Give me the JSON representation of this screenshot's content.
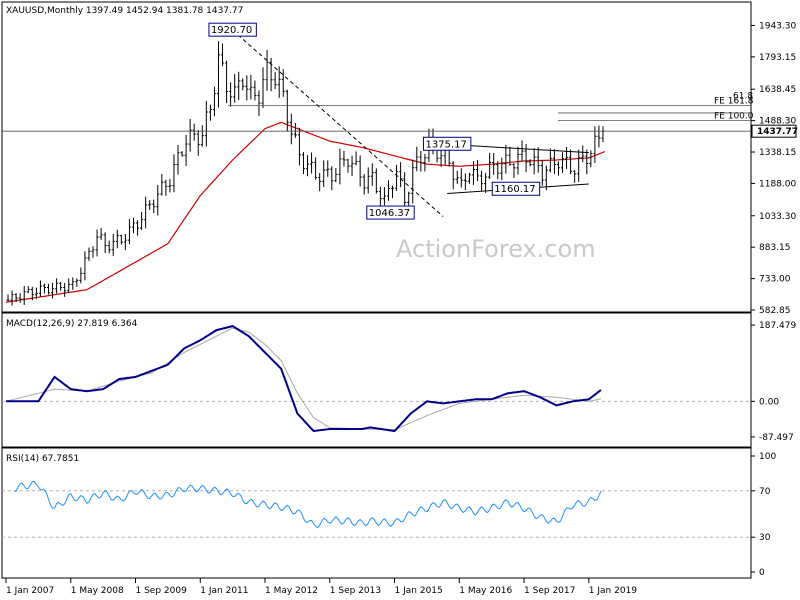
{
  "chart_data": {
    "type": "candlestick",
    "symbol_header": "XAUUSD,Monthly  1397.49 1452.94 1381.78 1437.77",
    "watermark": "ActionForex.com",
    "x_tick_labels": [
      "1 Jan 2007",
      "1 May 2008",
      "1 Sep 2009",
      "1 Jan 2011",
      "1 May 2012",
      "1 Sep 2013",
      "1 Jan 2015",
      "1 May 2016",
      "1 Sep 2017",
      "1 Jan 2019"
    ],
    "x_tick_months": [
      0,
      16,
      32,
      48,
      64,
      80,
      96,
      112,
      128,
      144
    ],
    "total_months": 148,
    "price_panel": {
      "y_range": [
        582.85,
        1998
      ],
      "y_tick_labels": [
        "1943.30",
        "1793.15",
        "1638.45",
        "1488.30",
        "1338.15",
        "1188.00",
        "1033.30",
        "883.15",
        "733.00",
        "582.85"
      ],
      "last_price_label": "1437.77",
      "last_price": 1437.77,
      "ohlc_anchor_months": [
        0,
        4,
        8,
        12,
        16,
        20,
        22,
        24,
        28,
        32,
        36,
        40,
        44,
        48,
        50,
        52,
        54,
        56,
        58,
        60,
        62,
        64,
        66,
        68,
        70,
        72,
        76,
        80,
        84,
        88,
        90,
        93,
        96,
        98,
        100,
        104,
        108,
        112,
        114,
        116,
        120,
        124,
        128,
        132,
        136,
        140,
        144,
        147
      ],
      "ohlc_anchor_closes": [
        630,
        660,
        680,
        690,
        700,
        850,
        940,
        890,
        920,
        1000,
        1110,
        1210,
        1400,
        1420,
        1550,
        1780,
        1660,
        1610,
        1700,
        1600,
        1620,
        1720,
        1700,
        1600,
        1440,
        1320,
        1230,
        1230,
        1310,
        1200,
        1210,
        1100,
        1250,
        1100,
        1250,
        1370,
        1320,
        1170,
        1260,
        1200,
        1270,
        1290,
        1320,
        1240,
        1300,
        1260,
        1340,
        1437.77
      ],
      "ma_anchor_months": [
        0,
        20,
        40,
        48,
        56,
        64,
        68,
        72,
        80,
        88,
        96,
        104,
        112,
        120,
        128,
        136,
        144,
        148
      ],
      "ma_anchor_values": [
        620,
        680,
        900,
        1130,
        1300,
        1450,
        1480,
        1450,
        1390,
        1360,
        1320,
        1280,
        1270,
        1280,
        1295,
        1300,
        1310,
        1340
      ],
      "horizontal_lines": [
        {
          "price": 1560,
          "label": "FE 161.8",
          "label2": "61.8"
        },
        {
          "price": 1488.3,
          "label": "FE 100.0"
        },
        {
          "price": 1437.77,
          "label": ""
        }
      ],
      "annotations": [
        {
          "text": "1920.70",
          "month": 56,
          "price": 1920.7
        },
        {
          "text": "1375.17",
          "month": 109,
          "price": 1375.17
        },
        {
          "text": "1046.37",
          "month": 95,
          "price": 1046.37
        },
        {
          "text": "1160.17",
          "month": 126,
          "price": 1160.17
        }
      ],
      "trendlines": [
        {
          "from": [
            56,
            1920.7
          ],
          "to": [
            108,
            1030
          ],
          "dashed": true
        },
        {
          "from": [
            109,
            1375.17
          ],
          "to": [
            144,
            1335
          ],
          "dashed": false
        },
        {
          "from": [
            109,
            1140
          ],
          "to": [
            144,
            1185
          ],
          "dashed": false
        }
      ]
    },
    "macd_panel": {
      "title": "MACD(12,26,9) 27.819 6.364",
      "y_range": [
        -95,
        195
      ],
      "y_tick_labels": [
        "187.479",
        "0.00",
        "-87.497"
      ],
      "macd_anchor_months": [
        0,
        8,
        12,
        16,
        20,
        24,
        28,
        32,
        36,
        40,
        44,
        48,
        52,
        56,
        60,
        64,
        68,
        72,
        76,
        80,
        84,
        88,
        90,
        96,
        100,
        104,
        108,
        112,
        116,
        120,
        124,
        128,
        132,
        136,
        140,
        144,
        147
      ],
      "macd_anchor_values": [
        0,
        0,
        60,
        30,
        25,
        30,
        55,
        60,
        75,
        90,
        130,
        150,
        175,
        185,
        160,
        120,
        80,
        -30,
        -73,
        -68,
        -68,
        -68,
        -64,
        -73,
        -30,
        0,
        -5,
        0,
        5,
        5,
        20,
        25,
        10,
        -10,
        0,
        5,
        27.819
      ],
      "signal_anchor_months": [
        0,
        12,
        20,
        28,
        36,
        44,
        52,
        56,
        60,
        64,
        68,
        72,
        76,
        80,
        88,
        96,
        104,
        112,
        120,
        128,
        136,
        144,
        147
      ],
      "signal_anchor_values": [
        0,
        30,
        25,
        50,
        70,
        120,
        160,
        180,
        170,
        140,
        100,
        20,
        -40,
        -65,
        -68,
        -70,
        -35,
        -5,
        5,
        15,
        10,
        0,
        6.364
      ]
    },
    "rsi_panel": {
      "title": "RSI(14) 67.7851",
      "y_range": [
        0,
        100
      ],
      "y_tick_labels": [
        "100",
        "70",
        "30",
        "0"
      ],
      "ref_levels": [
        70,
        30
      ],
      "rsi_anchor_months": [
        0,
        4,
        8,
        12,
        16,
        20,
        24,
        28,
        32,
        36,
        40,
        44,
        48,
        52,
        56,
        60,
        64,
        68,
        72,
        76,
        80,
        84,
        88,
        90,
        96,
        100,
        104,
        108,
        112,
        116,
        120,
        124,
        128,
        132,
        136,
        140,
        144,
        147
      ],
      "rsi_anchor_values": [
        70,
        74,
        76,
        55,
        65,
        62,
        68,
        62,
        70,
        65,
        66,
        72,
        72,
        70,
        68,
        60,
        58,
        56,
        52,
        40,
        45,
        44,
        42,
        44,
        42,
        50,
        55,
        60,
        55,
        52,
        55,
        60,
        55,
        47,
        43,
        58,
        60,
        67.7851
      ]
    },
    "colors": {
      "candle": "#000000",
      "moving_average": "#cc0000",
      "macd_line": "#00008b",
      "signal_line": "#a8a8a8",
      "rsi_line": "#1e90ff",
      "grid_dash": "#b0b0b0",
      "box_border": "#000080"
    }
  }
}
